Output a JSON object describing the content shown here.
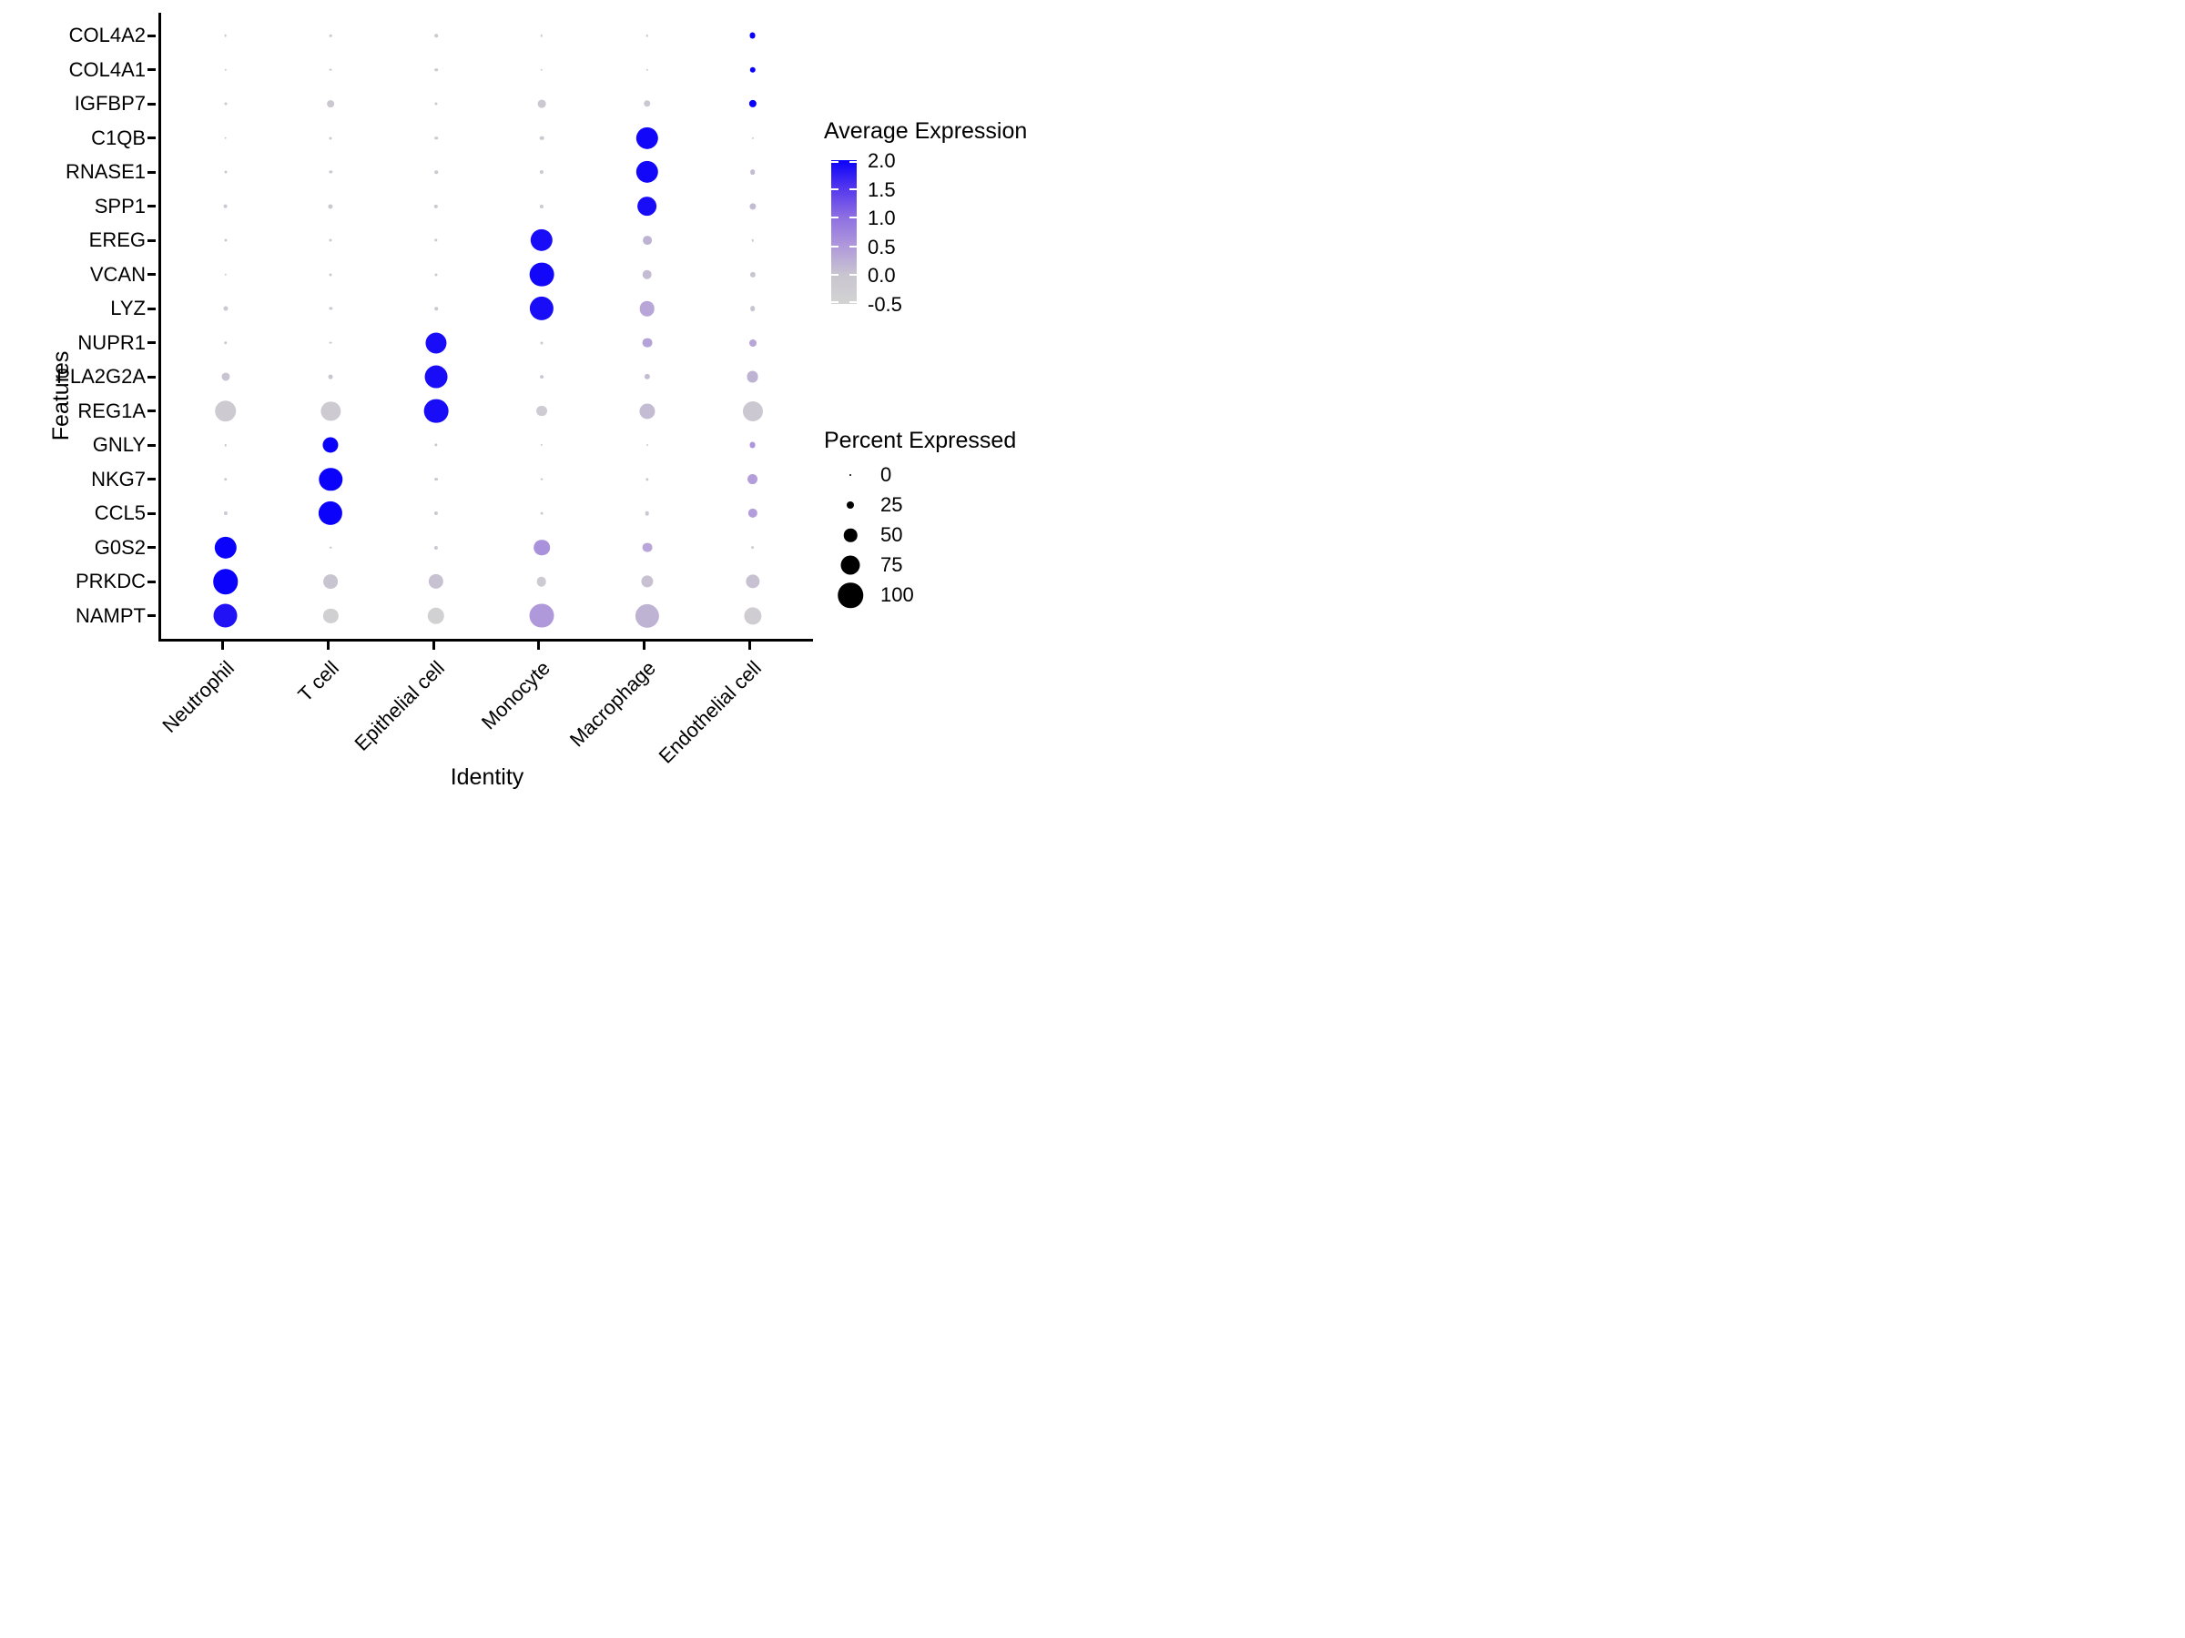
{
  "figure_type": "seurat-dotplot",
  "axes": {
    "x_title": "Identity",
    "y_title": "Features"
  },
  "legend": {
    "color_title": "Average Expression",
    "color_ticks": [
      "2.0",
      "1.5",
      "1.0",
      "0.5",
      "0.0",
      "-0.5"
    ],
    "size_title": "Percent Expressed",
    "size_ticks": [
      0,
      25,
      50,
      75,
      100
    ]
  },
  "colors": {
    "scale_stops": [
      {
        "value": 2.0,
        "color": "#0a02fa"
      },
      {
        "value": 1.5,
        "color": "#5638ee"
      },
      {
        "value": 1.0,
        "color": "#8e70e2"
      },
      {
        "value": 0.5,
        "color": "#b099db"
      },
      {
        "value": 0.0,
        "color": "#c9c5d0"
      },
      {
        "value": -0.5,
        "color": "#d3d3d3"
      }
    ],
    "high": "#0000ff",
    "low": "#d3d3d3",
    "axis": "#000000",
    "legend_dot": "#000000"
  },
  "chart_data": {
    "type": "scatter",
    "subtype": "dot-plot-bubble-matrix",
    "title": "",
    "xlabel": "Identity",
    "ylabel": "Features",
    "grid": false,
    "legend_position": "right",
    "categories_x": [
      "Neutrophil",
      "T cell",
      "Epithelial cell",
      "Monocyte",
      "Macrophage",
      "Endothelial cell"
    ],
    "categories_y": [
      "COL4A2",
      "COL4A1",
      "IGFBP7",
      "C1QB",
      "RNASE1",
      "SPP1",
      "EREG",
      "VCAN",
      "LYZ",
      "NUPR1",
      "PLA2G2A",
      "REG1A",
      "GNLY",
      "NKG7",
      "CCL5",
      "G0S2",
      "PRKDC",
      "NAMPT"
    ],
    "size_variable": "percent_expressed",
    "size_range": [
      0,
      100
    ],
    "color_variable": "average_expression",
    "color_range": [
      -0.5,
      2.0
    ],
    "series": [
      {
        "name": "Neutrophil",
        "percent_expressed": [
          5,
          4,
          6,
          5,
          6,
          13,
          6,
          4,
          14,
          8,
          29,
          85,
          4,
          8,
          10,
          88,
          100,
          98
        ],
        "average_expression": [
          -0.1,
          -0.1,
          -0.1,
          -0.1,
          -0.1,
          -0.1,
          -0.1,
          -0.1,
          -0.1,
          -0.1,
          0.0,
          -0.2,
          -0.2,
          -0.1,
          -0.1,
          2.0,
          2.0,
          1.85
        ]
      },
      {
        "name": "T cell",
        "percent_expressed": [
          4,
          5,
          24,
          6,
          7,
          14,
          6,
          6,
          7,
          5,
          13,
          76,
          60,
          92,
          95,
          4,
          55,
          57
        ],
        "average_expression": [
          -0.1,
          -0.1,
          -0.1,
          -0.1,
          -0.1,
          -0.1,
          -0.1,
          -0.1,
          -0.1,
          -0.1,
          0.0,
          -0.2,
          2.0,
          2.0,
          2.0,
          -0.2,
          0.0,
          -0.35
        ]
      },
      {
        "name": "Epithelial cell",
        "percent_expressed": [
          8,
          8,
          6,
          8,
          8,
          11,
          7,
          6,
          8,
          83,
          90,
          97,
          7,
          9,
          10,
          10,
          57,
          65
        ],
        "average_expression": [
          -0.1,
          -0.1,
          -0.1,
          -0.1,
          -0.1,
          -0.1,
          -0.1,
          -0.1,
          -0.1,
          1.9,
          1.9,
          1.9,
          -0.1,
          -0.1,
          -0.1,
          -0.1,
          0.05,
          -0.4
        ]
      },
      {
        "name": "Monocyte",
        "percent_expressed": [
          4,
          4,
          28,
          12,
          10,
          10,
          88,
          97,
          95,
          6,
          9,
          40,
          3,
          5,
          5,
          62,
          35,
          98
        ],
        "average_expression": [
          -0.1,
          -0.1,
          -0.1,
          -0.1,
          -0.1,
          -0.1,
          1.9,
          1.95,
          1.9,
          -0.1,
          -0.1,
          -0.25,
          -0.2,
          -0.2,
          -0.2,
          0.6,
          -0.2,
          0.5
        ]
      },
      {
        "name": "Macrophage",
        "percent_expressed": [
          4,
          3,
          23,
          88,
          88,
          78,
          32,
          35,
          58,
          36,
          18,
          60,
          2,
          7,
          12,
          36,
          45,
          95
        ],
        "average_expression": [
          -0.1,
          -0.1,
          -0.1,
          1.95,
          1.95,
          1.9,
          0.2,
          0.1,
          0.35,
          0.4,
          0.1,
          0.1,
          -0.2,
          -0.1,
          -0.1,
          0.35,
          0.05,
          0.2
        ]
      },
      {
        "name": "Endothelial cell",
        "percent_expressed": [
          21,
          19,
          26,
          3,
          16,
          22,
          4,
          18,
          16,
          25,
          44,
          79,
          21,
          40,
          34,
          9,
          53,
          68
        ],
        "average_expression": [
          2.0,
          2.0,
          2.0,
          -0.2,
          0.1,
          0.1,
          -0.1,
          0.0,
          0.0,
          0.35,
          0.2,
          -0.1,
          0.55,
          0.45,
          0.45,
          -0.3,
          0.05,
          -0.3
        ]
      }
    ]
  }
}
